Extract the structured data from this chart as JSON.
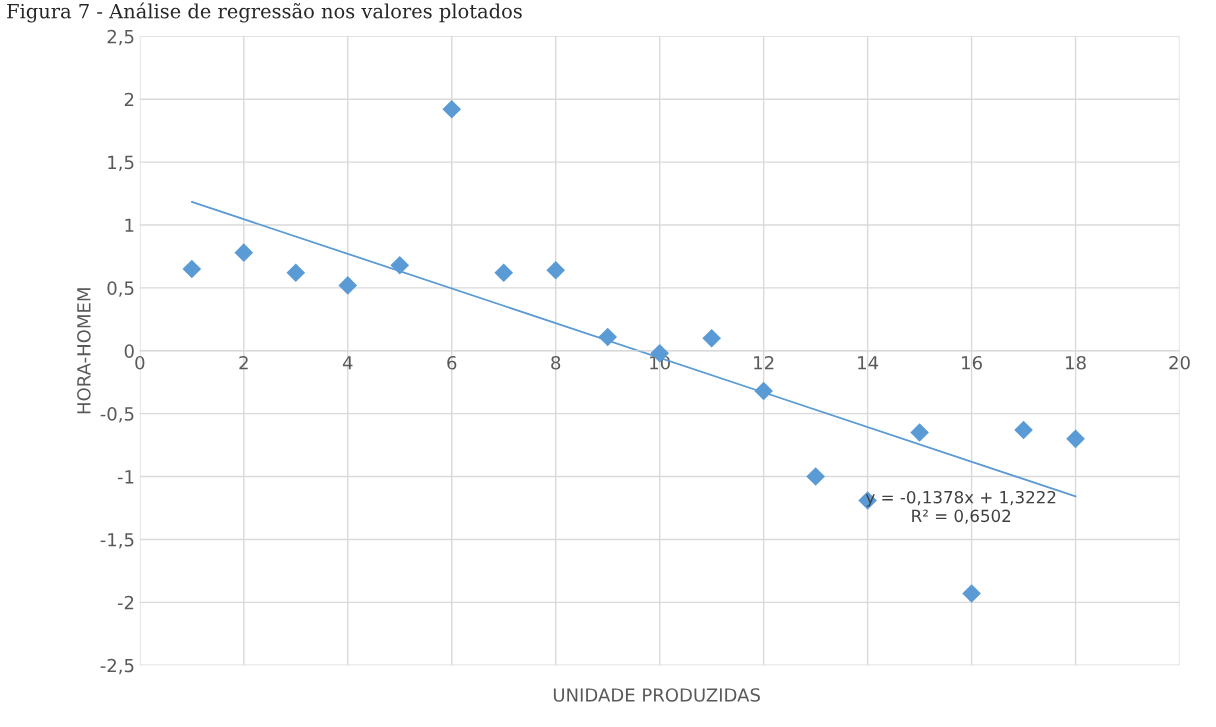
{
  "chart_data": {
    "type": "scatter",
    "title": "Figura 7 - Análise de regressão nos valores plotados",
    "xlabel": "UNIDADE PRODUZIDAS",
    "ylabel": "HORA-HOMEM",
    "x": [
      1,
      2,
      3,
      4,
      5,
      6,
      7,
      8,
      9,
      10,
      11,
      12,
      13,
      14,
      15,
      16,
      17,
      18
    ],
    "series": [
      {
        "color": "#5b9bd5",
        "marker": "diamond",
        "values": [
          0.65,
          0.78,
          0.62,
          0.52,
          0.68,
          1.92,
          0.62,
          0.64,
          0.11,
          -0.02,
          0.1,
          -0.32,
          -1.0,
          -1.19,
          -0.65,
          -1.93,
          -0.63,
          -0.7
        ]
      },
      {
        "type": "line",
        "color": "#5b9bd5",
        "marker": "none",
        "line_style": "solid",
        "x": [
          1,
          18
        ],
        "values": [
          1.184,
          -1.158
        ]
      }
    ],
    "annotations": [
      "y = -0,1378x + 1,3222\nR² = 0,6502"
    ],
    "xlim": [
      0,
      20
    ],
    "xticks": [
      0,
      2,
      4,
      6,
      8,
      10,
      12,
      14,
      16,
      18,
      20
    ],
    "ylim": [
      -2.5,
      2.5
    ],
    "yticks": [
      {
        "value": -2.5,
        "label": "-2,5"
      },
      {
        "value": -2,
        "label": "-2"
      },
      {
        "value": -1.5,
        "label": "-1,5"
      },
      {
        "value": -1,
        "label": "-1"
      },
      {
        "value": -0.5,
        "label": "-0,5"
      },
      {
        "value": 0,
        "label": "0"
      },
      {
        "value": 0.5,
        "label": "0,5"
      },
      {
        "value": 1,
        "label": "1"
      },
      {
        "value": 1.5,
        "label": "1,5"
      },
      {
        "value": 2,
        "label": "2"
      },
      {
        "value": 2.5,
        "label": "2,5"
      }
    ],
    "grid": true,
    "legend": false
  }
}
